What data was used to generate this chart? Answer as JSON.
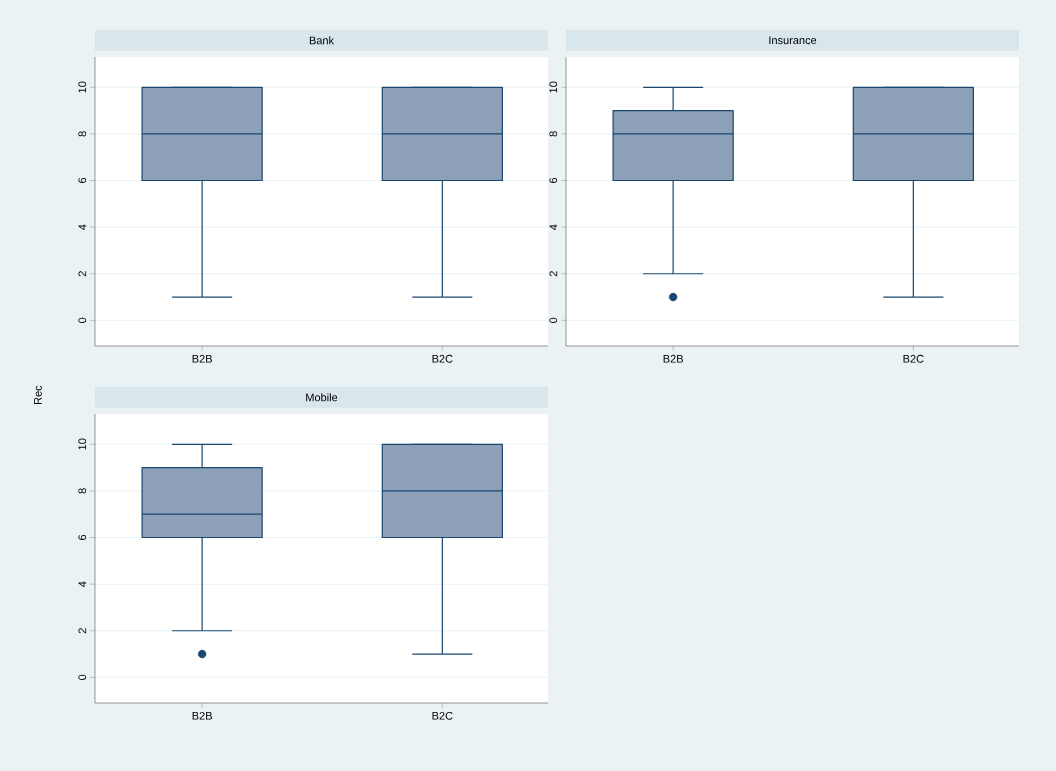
{
  "chart_data": [
    {
      "type": "box",
      "title": "Bank",
      "ylabel": "Rec",
      "categories": [
        "B2B",
        "B2C"
      ],
      "ylim": [
        -1.1,
        11.3
      ],
      "yticks": [
        0,
        2,
        4,
        6,
        8,
        10
      ],
      "grid": "y",
      "series": [
        {
          "color": "#8ca1b7",
          "boxes": [
            {
              "low": 1,
              "q1": 6,
              "median": 8,
              "q3": 10,
              "high": 10
            },
            {
              "low": 1,
              "q1": 6,
              "median": 8,
              "q3": 10,
              "high": 10
            }
          ]
        }
      ]
    },
    {
      "type": "box",
      "title": "Insurance",
      "categories": [
        "B2B",
        "B2C"
      ],
      "ylim": [
        -1.1,
        11.3
      ],
      "yticks": [
        0,
        2,
        4,
        6,
        8,
        10
      ],
      "grid": "y",
      "series": [
        {
          "color": "#8ca1b7",
          "boxes": [
            {
              "low": 2,
              "q1": 6,
              "median": 8,
              "q3": 9,
              "high": 10,
              "outliers": [
                1
              ]
            },
            {
              "low": 1,
              "q1": 6,
              "median": 8,
              "q3": 10,
              "high": 10
            }
          ]
        }
      ]
    },
    {
      "type": "box",
      "title": "Mobile",
      "categories": [
        "B2B",
        "B2C"
      ],
      "ylim": [
        -1.1,
        11.3
      ],
      "yticks": [
        0,
        2,
        4,
        6,
        8,
        10
      ],
      "grid": "y",
      "series": [
        {
          "color": "#8ca1b7",
          "boxes": [
            {
              "low": 2,
              "q1": 6,
              "median": 7,
              "q3": 9,
              "high": 10,
              "outliers": [
                1
              ]
            },
            {
              "low": 1,
              "q1": 6,
              "median": 8,
              "q3": 10,
              "high": 10
            }
          ]
        }
      ]
    }
  ]
}
